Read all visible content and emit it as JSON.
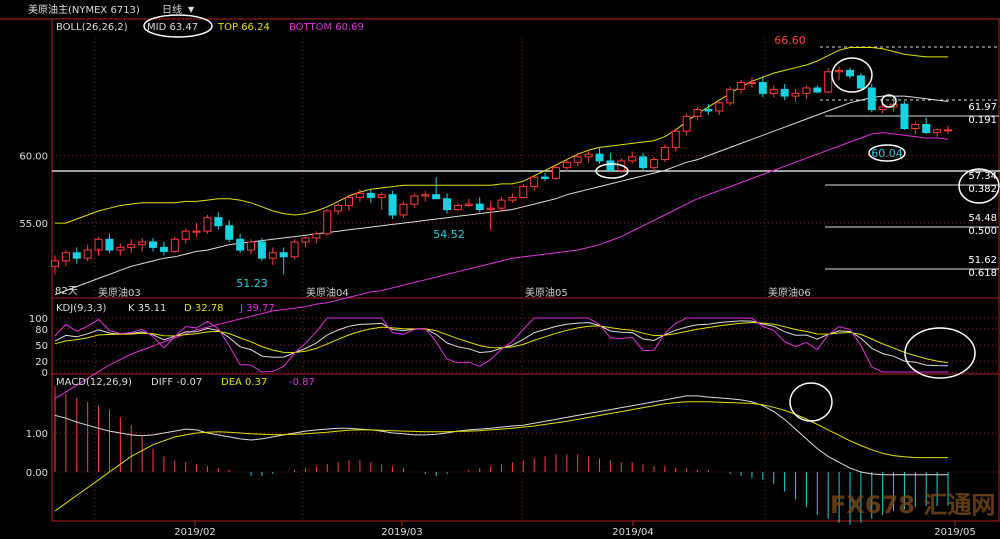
{
  "header": {
    "instrument": "美原油主(NYMEX 6713)",
    "period": "日线",
    "boll_label": "BOLL(26,26,2)",
    "mid": "MID 63.47",
    "top": "TOP 66.24",
    "bottom": "BOTTOM 60.69"
  },
  "kdj": {
    "label": "KDJ(9,3,3)",
    "k": "K 35.11",
    "d": "D 32.78",
    "j": "J 39.77"
  },
  "macd": {
    "label": "MACD(12,26,9)",
    "diff": "DIFF -0.07",
    "dea": "DEA 0.37",
    "macd": "-0.87"
  },
  "watermark": "FX678 汇通网",
  "sub_label": "82天",
  "colors": {
    "up": "#ff3a3a",
    "down": "#19d2e0",
    "upper": "#e6e000",
    "mid": "#dddddd",
    "lower": "#e030e0",
    "macd_up": "#ff4040",
    "macd_down": "#19d2e0"
  },
  "chart_data": {
    "type": "candlestick",
    "title": "美原油主(NYMEX 6713) 日线",
    "x_axis_labels": [
      "2019/02",
      "2019/03",
      "2019/04",
      "2019/05"
    ],
    "contract_labels": [
      "美原油03",
      "美原油04",
      "美原油05",
      "美原油06"
    ],
    "y_ticks": [
      55.0,
      60.0
    ],
    "y_range": [
      49.6,
      68.7
    ],
    "price_annotations": [
      {
        "label": "51.23",
        "value": 51.23
      },
      {
        "label": "54.52",
        "value": 54.52
      },
      {
        "label": "66.60",
        "value": 66.6
      },
      {
        "label": "60.04",
        "value": 60.04
      }
    ],
    "fib_levels": [
      {
        "price": "61.97",
        "ratio": "0.191",
        "value": 61.97
      },
      {
        "price": "57.34",
        "ratio": "0.382",
        "value": 57.34
      },
      {
        "price": "54.48",
        "ratio": "0.500",
        "value": 54.48
      },
      {
        "price": "51.62",
        "ratio": "0.618",
        "value": 51.62
      }
    ],
    "candles": [
      [
        51.8,
        52.6,
        51.2,
        52.2
      ],
      [
        52.2,
        53.0,
        51.8,
        52.8
      ],
      [
        52.8,
        53.2,
        52.0,
        52.4
      ],
      [
        52.4,
        53.4,
        52.2,
        53.0
      ],
      [
        53.0,
        54.0,
        52.6,
        53.8
      ],
      [
        53.8,
        54.2,
        52.8,
        53.0
      ],
      [
        53.0,
        53.5,
        52.6,
        53.2
      ],
      [
        53.2,
        53.8,
        52.8,
        53.4
      ],
      [
        53.4,
        53.9,
        52.9,
        53.6
      ],
      [
        53.6,
        53.9,
        52.9,
        53.2
      ],
      [
        53.2,
        53.6,
        52.6,
        52.9
      ],
      [
        52.9,
        54.0,
        52.8,
        53.8
      ],
      [
        53.8,
        54.6,
        53.5,
        54.4
      ],
      [
        54.4,
        55.0,
        54.0,
        54.4
      ],
      [
        54.4,
        55.6,
        54.2,
        55.4
      ],
      [
        55.4,
        55.8,
        54.5,
        54.8
      ],
      [
        54.8,
        55.2,
        53.6,
        53.8
      ],
      [
        53.8,
        54.2,
        52.8,
        53.0
      ],
      [
        53.0,
        53.8,
        52.7,
        53.6
      ],
      [
        53.6,
        53.9,
        52.2,
        52.4
      ],
      [
        52.4,
        53.2,
        51.9,
        52.8
      ],
      [
        52.8,
        53.2,
        51.2,
        52.5
      ],
      [
        52.5,
        53.8,
        52.3,
        53.6
      ],
      [
        53.6,
        54.0,
        53.2,
        53.9
      ],
      [
        53.9,
        54.4,
        53.5,
        54.2
      ],
      [
        54.2,
        56.0,
        54.1,
        55.9
      ],
      [
        55.9,
        56.5,
        55.6,
        56.3
      ],
      [
        56.3,
        57.0,
        55.9,
        56.9
      ],
      [
        56.9,
        57.5,
        56.6,
        57.2
      ],
      [
        57.2,
        57.5,
        56.5,
        56.9
      ],
      [
        56.9,
        57.3,
        56.0,
        57.1
      ],
      [
        57.1,
        57.4,
        55.3,
        55.6
      ],
      [
        55.6,
        56.6,
        55.4,
        56.4
      ],
      [
        56.4,
        57.2,
        56.1,
        57.0
      ],
      [
        57.0,
        57.4,
        56.6,
        57.1
      ],
      [
        57.1,
        58.4,
        56.8,
        56.8
      ],
      [
        56.8,
        57.2,
        55.7,
        56.0
      ],
      [
        56.0,
        56.5,
        55.9,
        56.3
      ],
      [
        56.3,
        56.8,
        56.2,
        56.4
      ],
      [
        56.4,
        56.9,
        55.8,
        56.0
      ],
      [
        56.0,
        56.6,
        54.5,
        56.1
      ],
      [
        56.1,
        56.9,
        55.9,
        56.7
      ],
      [
        56.7,
        57.2,
        56.5,
        56.9
      ],
      [
        56.9,
        57.9,
        56.8,
        57.7
      ],
      [
        57.7,
        58.5,
        57.4,
        58.4
      ],
      [
        58.4,
        58.7,
        58.1,
        58.3
      ],
      [
        58.3,
        59.3,
        58.2,
        59.1
      ],
      [
        59.1,
        59.7,
        58.8,
        59.5
      ],
      [
        59.5,
        60.2,
        59.2,
        59.9
      ],
      [
        59.9,
        60.4,
        59.5,
        60.1
      ],
      [
        60.1,
        60.6,
        59.4,
        59.6
      ],
      [
        59.6,
        60.2,
        58.8,
        58.9
      ],
      [
        58.9,
        59.8,
        58.7,
        59.6
      ],
      [
        59.6,
        60.3,
        59.4,
        59.9
      ],
      [
        59.9,
        60.2,
        58.8,
        59.1
      ],
      [
        59.1,
        59.9,
        58.8,
        59.7
      ],
      [
        59.7,
        60.8,
        59.5,
        60.6
      ],
      [
        60.6,
        62.0,
        60.3,
        61.8
      ],
      [
        61.8,
        63.1,
        61.5,
        62.9
      ],
      [
        62.9,
        63.6,
        62.6,
        63.4
      ],
      [
        63.4,
        63.8,
        63.0,
        63.3
      ],
      [
        63.3,
        64.0,
        63.0,
        63.9
      ],
      [
        63.9,
        65.1,
        63.7,
        64.9
      ],
      [
        64.9,
        65.6,
        64.6,
        65.4
      ],
      [
        65.4,
        65.8,
        65.0,
        65.4
      ],
      [
        65.4,
        65.9,
        64.3,
        64.6
      ],
      [
        64.6,
        65.2,
        64.3,
        64.9
      ],
      [
        64.9,
        65.3,
        64.1,
        64.4
      ],
      [
        64.4,
        64.9,
        64.0,
        64.6
      ],
      [
        64.6,
        65.2,
        64.2,
        65.0
      ],
      [
        65.0,
        65.2,
        64.6,
        64.7
      ],
      [
        64.7,
        66.5,
        64.6,
        66.2
      ],
      [
        66.2,
        66.6,
        65.6,
        66.3
      ],
      [
        66.3,
        66.5,
        65.7,
        65.9
      ],
      [
        65.9,
        66.1,
        64.8,
        65.0
      ],
      [
        65.0,
        65.3,
        63.2,
        63.4
      ],
      [
        63.4,
        63.9,
        63.1,
        63.6
      ],
      [
        63.6,
        64.3,
        63.2,
        63.8
      ],
      [
        63.8,
        64.0,
        61.9,
        62.0
      ],
      [
        62.0,
        62.5,
        61.6,
        62.3
      ],
      [
        62.3,
        62.8,
        61.6,
        61.7
      ],
      [
        61.7,
        62.0,
        61.4,
        61.9
      ],
      [
        61.9,
        62.2,
        61.6,
        61.9
      ]
    ],
    "boll": {
      "upper": [
        55.0,
        55.0,
        55.3,
        55.6,
        55.9,
        56.1,
        56.3,
        56.4,
        56.5,
        56.5,
        56.5,
        56.5,
        56.6,
        56.6,
        56.7,
        56.8,
        56.8,
        56.7,
        56.5,
        56.2,
        55.9,
        55.7,
        55.6,
        55.7,
        55.9,
        56.2,
        56.6,
        57.0,
        57.3,
        57.5,
        57.6,
        57.7,
        57.8,
        57.8,
        57.8,
        57.8,
        57.8,
        57.8,
        57.8,
        57.8,
        57.8,
        57.9,
        57.9,
        58.1,
        58.5,
        58.9,
        59.3,
        59.7,
        60.1,
        60.4,
        60.6,
        60.7,
        60.8,
        60.9,
        61.0,
        61.1,
        61.4,
        61.9,
        62.5,
        63.1,
        63.6,
        64.1,
        64.6,
        65.1,
        65.5,
        65.8,
        66.1,
        66.3,
        66.5,
        66.7,
        67.0,
        67.4,
        67.8,
        68.0,
        68.0,
        68.0,
        67.9,
        67.7,
        67.5,
        67.4,
        67.3,
        67.3,
        67.3
      ],
      "mid": [
        49.7,
        50.0,
        50.3,
        50.6,
        50.9,
        51.2,
        51.5,
        51.8,
        52.0,
        52.2,
        52.4,
        52.5,
        52.7,
        52.9,
        53.0,
        53.2,
        53.4,
        53.5,
        53.6,
        53.7,
        53.8,
        53.9,
        54.0,
        54.1,
        54.2,
        54.3,
        54.4,
        54.5,
        54.6,
        54.7,
        54.8,
        54.9,
        55.0,
        55.1,
        55.2,
        55.3,
        55.4,
        55.5,
        55.6,
        55.7,
        55.8,
        55.9,
        56.0,
        56.2,
        56.4,
        56.6,
        56.8,
        57.1,
        57.3,
        57.5,
        57.7,
        57.9,
        58.1,
        58.3,
        58.5,
        58.7,
        58.9,
        59.2,
        59.5,
        59.7,
        60.0,
        60.3,
        60.6,
        60.9,
        61.2,
        61.5,
        61.8,
        62.1,
        62.4,
        62.7,
        63.0,
        63.3,
        63.6,
        63.9,
        64.1,
        64.3,
        64.4,
        64.4,
        64.4,
        64.3,
        64.2,
        64.1,
        64.0
      ],
      "lower": [
        42.0,
        42.5,
        43.0,
        43.5,
        44.0,
        44.5,
        44.9,
        45.3,
        45.6,
        45.9,
        46.2,
        46.5,
        46.8,
        47.1,
        47.3,
        47.5,
        47.7,
        47.9,
        48.1,
        48.3,
        48.5,
        48.6,
        48.7,
        48.8,
        49.0,
        49.1,
        49.3,
        49.5,
        49.7,
        49.9,
        50.0,
        50.2,
        50.4,
        50.6,
        50.8,
        51.0,
        51.2,
        51.4,
        51.6,
        51.8,
        52.0,
        52.2,
        52.4,
        52.5,
        52.6,
        52.7,
        52.8,
        52.9,
        53.0,
        53.2,
        53.4,
        53.7,
        54.0,
        54.4,
        54.8,
        55.2,
        55.6,
        56.0,
        56.4,
        56.8,
        57.1,
        57.4,
        57.7,
        58.0,
        58.3,
        58.6,
        58.9,
        59.2,
        59.5,
        59.8,
        60.1,
        60.4,
        60.7,
        61.0,
        61.3,
        61.6,
        61.7,
        61.6,
        61.5,
        61.4,
        61.3,
        61.3,
        61.2
      ]
    },
    "kdj_panel": {
      "y_ticks": [
        0,
        20,
        50,
        80,
        100
      ]
    },
    "macd_panel": {
      "y_ticks": [
        0.0,
        1.0
      ],
      "diff": [
        1.45,
        1.38,
        1.28,
        1.2,
        1.12,
        1.05,
        1.0,
        0.95,
        0.93,
        0.95,
        1.0,
        1.05,
        1.1,
        1.08,
        1.0,
        0.95,
        0.9,
        0.85,
        0.82,
        0.85,
        0.9,
        0.95,
        1.0,
        1.05,
        1.08,
        1.1,
        1.12,
        1.12,
        1.1,
        1.08,
        1.05,
        1.0,
        0.98,
        0.95,
        0.95,
        0.97,
        1.0,
        1.05,
        1.08,
        1.1,
        1.12,
        1.15,
        1.18,
        1.2,
        1.25,
        1.3,
        1.35,
        1.4,
        1.45,
        1.5,
        1.55,
        1.6,
        1.65,
        1.7,
        1.75,
        1.8,
        1.85,
        1.9,
        1.95,
        1.95,
        1.92,
        1.9,
        1.88,
        1.85,
        1.8,
        1.7,
        1.55,
        1.35,
        1.1,
        0.85,
        0.6,
        0.4,
        0.25,
        0.1,
        0.0,
        -0.05,
        -0.07,
        -0.07,
        -0.07,
        -0.07,
        -0.07,
        -0.07,
        -0.07
      ],
      "dea": [
        -1.0,
        -0.8,
        -0.6,
        -0.4,
        -0.2,
        0.0,
        0.2,
        0.4,
        0.55,
        0.7,
        0.8,
        0.9,
        0.95,
        1.0,
        1.02,
        1.03,
        1.02,
        1.0,
        0.98,
        0.97,
        0.96,
        0.96,
        0.97,
        0.98,
        1.0,
        1.02,
        1.05,
        1.07,
        1.08,
        1.08,
        1.07,
        1.06,
        1.05,
        1.04,
        1.03,
        1.03,
        1.03,
        1.04,
        1.05,
        1.06,
        1.08,
        1.1,
        1.12,
        1.15,
        1.18,
        1.22,
        1.26,
        1.3,
        1.35,
        1.4,
        1.45,
        1.5,
        1.55,
        1.6,
        1.65,
        1.7,
        1.75,
        1.78,
        1.8,
        1.8,
        1.8,
        1.79,
        1.78,
        1.77,
        1.76,
        1.72,
        1.66,
        1.58,
        1.48,
        1.36,
        1.22,
        1.08,
        0.94,
        0.8,
        0.68,
        0.57,
        0.48,
        0.42,
        0.39,
        0.37,
        0.37,
        0.37,
        0.37
      ],
      "hist": [
        2.2,
        2.0,
        1.9,
        1.8,
        1.7,
        1.6,
        1.4,
        1.2,
        0.9,
        0.6,
        0.4,
        0.3,
        0.25,
        0.2,
        0.15,
        0.1,
        0.05,
        0.0,
        -0.1,
        -0.1,
        -0.05,
        0.0,
        0.05,
        0.1,
        0.15,
        0.2,
        0.25,
        0.3,
        0.3,
        0.25,
        0.2,
        0.15,
        0.1,
        0.0,
        -0.05,
        -0.1,
        -0.05,
        0.0,
        0.05,
        0.1,
        0.15,
        0.2,
        0.25,
        0.3,
        0.35,
        0.4,
        0.45,
        0.45,
        0.45,
        0.4,
        0.35,
        0.3,
        0.25,
        0.25,
        0.2,
        0.15,
        0.15,
        0.1,
        0.1,
        0.05,
        0.05,
        0.0,
        -0.05,
        -0.1,
        -0.15,
        -0.2,
        -0.3,
        -0.5,
        -0.7,
        -0.9,
        -1.1,
        -1.2,
        -1.3,
        -1.35,
        -1.3,
        -1.2,
        -1.1,
        -1.0,
        -0.95,
        -0.9,
        -0.88,
        -0.87,
        -0.87
      ]
    }
  }
}
